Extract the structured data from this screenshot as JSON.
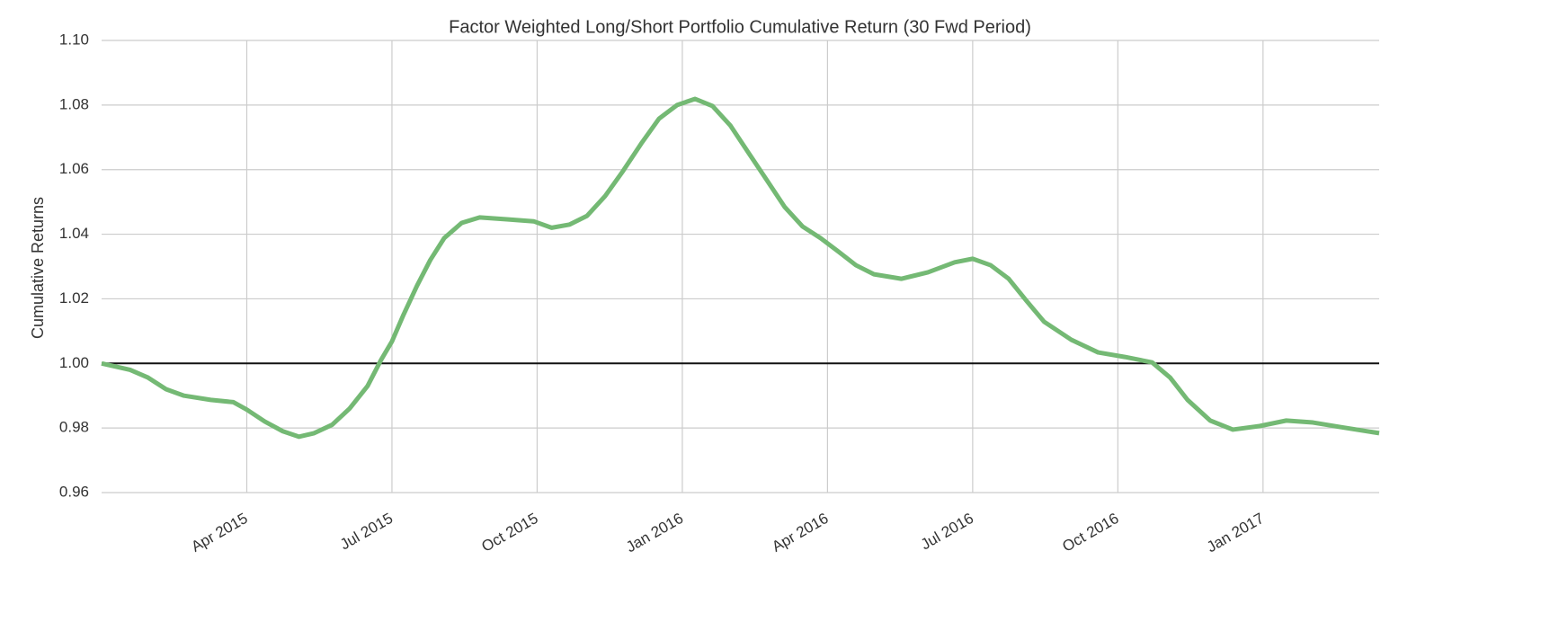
{
  "chart_data": {
    "type": "line",
    "title": "Factor Weighted Long/Short Portfolio Cumulative Return (30 Fwd Period)",
    "y_label": "Cumulative Returns",
    "x": [
      2015.0,
      2015.049,
      2015.08,
      2015.111,
      2015.142,
      2015.188,
      2015.227,
      2015.25,
      2015.281,
      2015.312,
      2015.34,
      2015.366,
      2015.397,
      2015.427,
      2015.458,
      2015.481,
      2015.5,
      2015.52,
      2015.543,
      2015.566,
      2015.59,
      2015.62,
      2015.651,
      2015.698,
      2015.744,
      2015.775,
      2015.806,
      2015.836,
      2015.867,
      2015.898,
      2015.929,
      2015.96,
      2015.991,
      2016.022,
      2016.052,
      2016.083,
      2016.114,
      2016.145,
      2016.176,
      2016.207,
      2016.238,
      2016.269,
      2016.299,
      2016.33,
      2016.377,
      2016.423,
      2016.469,
      2016.5,
      2016.531,
      2016.562,
      2016.593,
      2016.623,
      2016.67,
      2016.716,
      2016.762,
      2016.809,
      2016.84,
      2016.87,
      2016.909,
      2016.948,
      2016.994,
      2017.04,
      2017.086,
      2017.133,
      2017.2
    ],
    "series": [
      {
        "name": "Cumulative Return",
        "color": "#74b974",
        "values": [
          1.0,
          0.998,
          0.9956,
          0.992,
          0.99,
          0.9887,
          0.988,
          0.9857,
          0.982,
          0.979,
          0.9773,
          0.9784,
          0.981,
          0.986,
          0.993,
          1.001,
          1.0068,
          1.0151,
          1.024,
          1.032,
          1.0388,
          1.0435,
          1.0452,
          1.0446,
          1.044,
          1.042,
          1.043,
          1.0457,
          1.0518,
          1.0596,
          1.068,
          1.0758,
          1.08,
          1.0819,
          1.0797,
          1.0736,
          1.0652,
          1.0569,
          1.0485,
          1.0424,
          1.0388,
          1.0346,
          1.0304,
          1.0276,
          1.0262,
          1.0282,
          1.0313,
          1.0324,
          1.0304,
          1.0262,
          1.0193,
          1.0129,
          1.0073,
          1.0034,
          1.002,
          1.0003,
          0.9956,
          0.9887,
          0.9823,
          0.9795,
          0.9806,
          0.9823,
          0.9817,
          0.9803,
          0.9784
        ]
      }
    ],
    "xlim": [
      2015.0,
      2017.2
    ],
    "xticks": [
      {
        "value": 2015.25,
        "label": "Apr 2015"
      },
      {
        "value": 2015.5,
        "label": "Jul 2015"
      },
      {
        "value": 2015.75,
        "label": "Oct 2015"
      },
      {
        "value": 2016.0,
        "label": "Jan 2016"
      },
      {
        "value": 2016.25,
        "label": "Apr 2016"
      },
      {
        "value": 2016.5,
        "label": "Jul 2016"
      },
      {
        "value": 2016.75,
        "label": "Oct 2016"
      },
      {
        "value": 2017.0,
        "label": "Jan 2017"
      }
    ],
    "ylim": [
      0.96,
      1.1
    ],
    "yticks": [
      0.96,
      0.98,
      {
        "value": 1.0,
        "label": "1.00"
      },
      1.02,
      1.04,
      1.06,
      1.08,
      {
        "value": 1.1,
        "label": "1.10"
      }
    ],
    "hline": 1.0,
    "grid": true
  }
}
